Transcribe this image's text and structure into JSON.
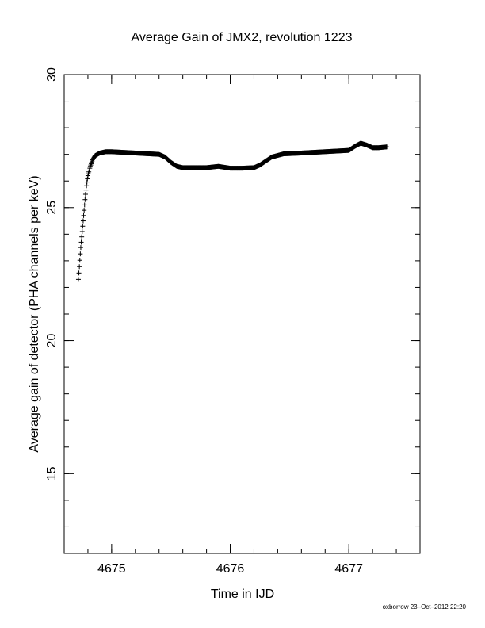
{
  "chart_data": {
    "type": "scatter",
    "title": "Average Gain of JMX2, revolution 1223",
    "xlabel": "Time in IJD",
    "ylabel": "Average gain of detector (PHA channels per keV)",
    "xlim": [
      4674.6,
      4677.6
    ],
    "ylim": [
      12,
      30
    ],
    "xticks": [
      4675,
      4676,
      4677
    ],
    "yticks": [
      15,
      20,
      25,
      30
    ],
    "x_minor_step": 0.2,
    "y_minor_step": 1,
    "marker": "plus",
    "grid": false,
    "curve": [
      [
        4674.72,
        22.3
      ],
      [
        4674.73,
        22.9
      ],
      [
        4674.74,
        23.5
      ],
      [
        4674.75,
        24.0
      ],
      [
        4674.76,
        24.5
      ],
      [
        4674.77,
        25.0
      ],
      [
        4674.78,
        25.5
      ],
      [
        4674.79,
        25.9
      ],
      [
        4674.8,
        26.2
      ],
      [
        4674.82,
        26.55
      ],
      [
        4674.84,
        26.8
      ],
      [
        4674.86,
        26.95
      ],
      [
        4674.9,
        27.05
      ],
      [
        4674.95,
        27.1
      ],
      [
        4675.0,
        27.1
      ],
      [
        4675.2,
        27.05
      ],
      [
        4675.4,
        27.0
      ],
      [
        4675.45,
        26.9
      ],
      [
        4675.5,
        26.7
      ],
      [
        4675.55,
        26.55
      ],
      [
        4675.6,
        26.5
      ],
      [
        4675.7,
        26.5
      ],
      [
        4675.8,
        26.5
      ],
      [
        4675.9,
        26.55
      ],
      [
        4676.0,
        26.48
      ],
      [
        4676.1,
        26.48
      ],
      [
        4676.2,
        26.5
      ],
      [
        4676.25,
        26.6
      ],
      [
        4676.3,
        26.75
      ],
      [
        4676.35,
        26.9
      ],
      [
        4676.45,
        27.02
      ],
      [
        4676.6,
        27.05
      ],
      [
        4676.8,
        27.1
      ],
      [
        4677.0,
        27.15
      ],
      [
        4677.05,
        27.3
      ],
      [
        4677.1,
        27.42
      ],
      [
        4677.15,
        27.35
      ],
      [
        4677.2,
        27.25
      ],
      [
        4677.25,
        27.25
      ],
      [
        4677.32,
        27.28
      ]
    ],
    "sampling_step": 0.004
  },
  "footer": {
    "stamp": "oxborrow 23–Oct–2012 22:20"
  }
}
